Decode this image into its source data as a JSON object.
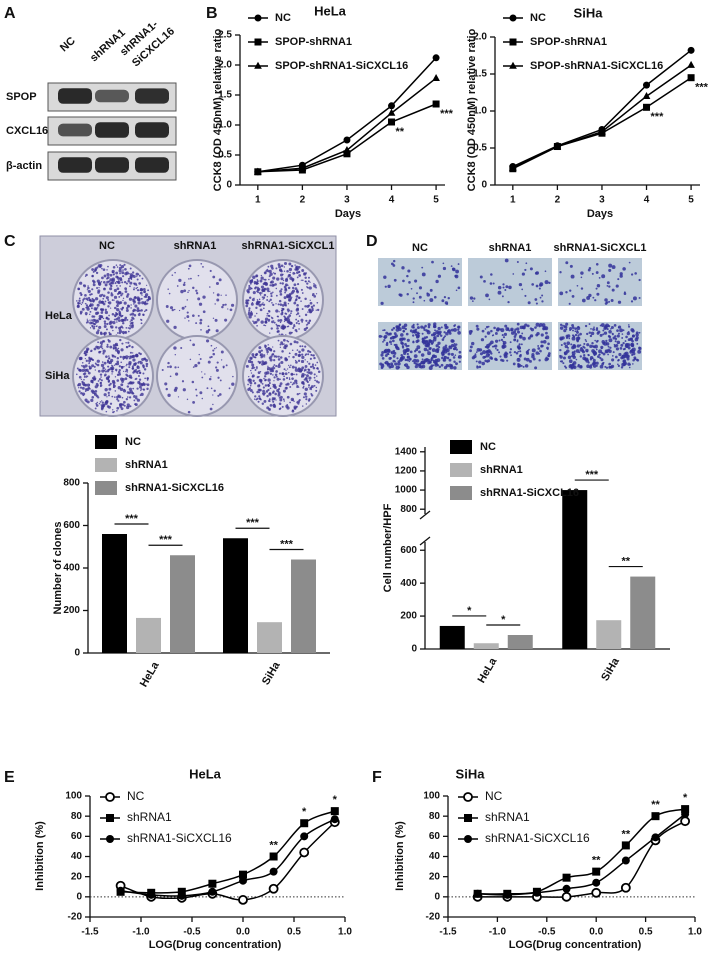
{
  "panel_labels": [
    "A",
    "B",
    "C",
    "D",
    "E",
    "F"
  ],
  "blot": {
    "lanes": [
      [
        "NC"
      ],
      [
        "shRNA1"
      ],
      [
        "shRNA1-",
        "SiCXCL16"
      ]
    ],
    "rows": [
      "SPOP",
      "CXCL16",
      "β-actin"
    ]
  },
  "colony_image": {
    "columns": [
      "NC",
      "shRNA1",
      "shRNA1-SiCXCL1"
    ],
    "rows": [
      "HeLa",
      "SiHa"
    ]
  },
  "transwell_image": {
    "columns": [
      "NC",
      "shRNA1",
      "shRNA1-SiCXCL1"
    ]
  },
  "chart_data": [
    {
      "type": "line",
      "title": "HeLa",
      "x_label": "Days",
      "y_label": "CCK8 (OD 450nM) relative ratio",
      "x": [
        1,
        2,
        3,
        4,
        5
      ],
      "xlim": [
        0.6,
        5.2
      ],
      "xticks": [
        1,
        2,
        3,
        4,
        5
      ],
      "ylim": [
        0,
        2.5
      ],
      "yticks": [
        0,
        0.5,
        {
          "value": 1,
          "label": "1.0"
        },
        1.5,
        {
          "value": 2,
          "label": "2.0"
        },
        2.5
      ],
      "legend": "upper left",
      "series": [
        {
          "name": "NC",
          "color": "#000000",
          "marker": "circle",
          "values": [
            0.22,
            0.33,
            0.75,
            1.32,
            2.12
          ]
        },
        {
          "name": "SPOP-shRNA1",
          "color": "#000000",
          "marker": "square",
          "values": [
            0.22,
            0.25,
            0.52,
            1.05,
            1.35
          ]
        },
        {
          "name": "SPOP-shRNA1-SiCXCL16",
          "color": "#000000",
          "marker": "triangle",
          "values": [
            0.22,
            0.28,
            0.58,
            1.2,
            1.78
          ]
        }
      ],
      "annotations": [
        {
          "x": 4,
          "text": "**"
        },
        {
          "x": 5,
          "text": "***"
        }
      ]
    },
    {
      "type": "line",
      "title": "SiHa",
      "x_label": "Days",
      "y_label": "CCK8 (OD 450nM) relative ratio",
      "x": [
        1,
        2,
        3,
        4,
        5
      ],
      "xlim": [
        0.6,
        5.2
      ],
      "xticks": [
        1,
        2,
        3,
        4,
        5
      ],
      "ylim": [
        0,
        2
      ],
      "yticks": [
        0,
        0.5,
        {
          "value": 1,
          "label": "1.0"
        },
        1.5,
        {
          "value": 2,
          "label": "2.0"
        }
      ],
      "legend": "upper left",
      "series": [
        {
          "name": "NC",
          "color": "#000000",
          "marker": "circle",
          "values": [
            0.25,
            0.53,
            0.75,
            1.35,
            1.82
          ]
        },
        {
          "name": "SPOP-shRNA1",
          "color": "#000000",
          "marker": "square",
          "values": [
            0.22,
            0.52,
            0.7,
            1.05,
            1.45
          ]
        },
        {
          "name": "SPOP-shRNA1-SiCXCL16",
          "color": "#000000",
          "marker": "triangle",
          "values": [
            0.23,
            0.52,
            0.72,
            1.2,
            1.62
          ]
        }
      ],
      "annotations": [
        {
          "x": 4,
          "text": "***"
        },
        {
          "x": 5,
          "text": "***"
        }
      ]
    },
    {
      "type": "bar",
      "y_label": "Number of clones",
      "categories": [
        "HeLa",
        "SiHa"
      ],
      "ylim": [
        0,
        800
      ],
      "yticks": [
        0,
        200,
        400,
        600,
        800
      ],
      "legend": "top",
      "series": [
        {
          "name": "NC",
          "color": "#000000",
          "values": [
            560,
            540
          ]
        },
        {
          "name": "shRNA1",
          "color": "#b3b3b3",
          "values": [
            165,
            145
          ]
        },
        {
          "name": "shRNA1-SiCXCL16",
          "color": "#8c8c8c",
          "values": [
            460,
            440
          ]
        }
      ],
      "significance": [
        {
          "category": 0,
          "series": [
            0,
            1
          ],
          "text": "***"
        },
        {
          "category": 0,
          "series": [
            1,
            2
          ],
          "text": "***"
        },
        {
          "category": 1,
          "series": [
            0,
            1
          ],
          "text": "***"
        },
        {
          "category": 1,
          "series": [
            1,
            2
          ],
          "text": "***"
        }
      ]
    },
    {
      "type": "bar",
      "y_label": "Cell number/HPF",
      "categories": [
        "HeLa",
        "SiHa"
      ],
      "ylim": [
        0,
        1450
      ],
      "axis_break": [
        650,
        750
      ],
      "yticks": [
        0,
        200,
        400,
        600,
        800,
        1000,
        1200,
        1400
      ],
      "legend": "top",
      "series": [
        {
          "name": "NC",
          "color": "#000000",
          "values": [
            140,
            1000
          ]
        },
        {
          "name": "shRNA1",
          "color": "#b3b3b3",
          "values": [
            35,
            175
          ]
        },
        {
          "name": "shRNA1-SiCXCL16",
          "color": "#8c8c8c",
          "values": [
            85,
            440
          ]
        }
      ],
      "significance": [
        {
          "category": 0,
          "series": [
            0,
            1
          ],
          "text": "*"
        },
        {
          "category": 0,
          "series": [
            1,
            2
          ],
          "text": "*"
        },
        {
          "category": 1,
          "series": [
            0,
            1
          ],
          "text": "***"
        },
        {
          "category": 1,
          "series": [
            1,
            2
          ],
          "text": "**"
        }
      ]
    },
    {
      "type": "line",
      "curve": "smooth",
      "title": "HeLa",
      "x_label": "LOG(Drug concentration)",
      "y_label": "Inhibition (%)",
      "x": [
        -1.2,
        -0.9,
        -0.6,
        -0.3,
        0,
        0.3,
        0.6,
        0.9
      ],
      "xlim": [
        -1.5,
        1
      ],
      "xticks": [
        -1.5,
        {
          "value": -1,
          "label": "-1.0"
        },
        -0.5,
        {
          "value": 0,
          "label": "0.0"
        },
        0.5,
        {
          "value": 1,
          "label": "1.0"
        }
      ],
      "ylim": [
        -20,
        100
      ],
      "yticks": [
        -20,
        0,
        20,
        40,
        60,
        80,
        100
      ],
      "reference_line": 0,
      "legend": "upper left",
      "series": [
        {
          "name": "NC",
          "color": "#000000",
          "marker": "open-circle",
          "values": [
            11,
            0,
            -1,
            3,
            -3,
            8,
            44,
            74
          ]
        },
        {
          "name": "shRNA1",
          "color": "#000000",
          "marker": "square",
          "values": [
            5,
            4,
            5,
            13,
            22,
            40,
            73,
            85
          ]
        },
        {
          "name": "shRNA1-SiCXCL16",
          "color": "#000000",
          "marker": "circle",
          "values": [
            6,
            2,
            1,
            5,
            16,
            25,
            60,
            77
          ]
        }
      ],
      "annotations": [
        {
          "x": 0.3,
          "text": "**"
        },
        {
          "x": 0.6,
          "text": "*"
        },
        {
          "x": 0.9,
          "text": "*"
        }
      ]
    },
    {
      "type": "line",
      "curve": "smooth",
      "title": "SiHa",
      "x_label": "LOG(Drug concentration)",
      "y_label": "Inhibition (%)",
      "x": [
        -1.2,
        -0.9,
        -0.6,
        -0.3,
        0,
        0.3,
        0.6,
        0.9
      ],
      "xlim": [
        -1.5,
        1
      ],
      "xticks": [
        -1.5,
        {
          "value": -1,
          "label": "-1.0"
        },
        -0.5,
        {
          "value": 0,
          "label": "0.0"
        },
        0.5,
        {
          "value": 1,
          "label": "1.0"
        }
      ],
      "ylim": [
        -20,
        100
      ],
      "yticks": [
        -20,
        0,
        20,
        40,
        60,
        80,
        100
      ],
      "reference_line": 0,
      "legend": "upper left",
      "series": [
        {
          "name": "NC",
          "color": "#000000",
          "marker": "open-circle",
          "values": [
            0,
            0,
            0,
            0,
            4,
            9,
            56,
            75
          ]
        },
        {
          "name": "shRNA1",
          "color": "#000000",
          "marker": "square",
          "values": [
            3,
            3,
            5,
            19,
            25,
            51,
            80,
            87
          ]
        },
        {
          "name": "shRNA1-SiCXCL16",
          "color": "#000000",
          "marker": "circle",
          "values": [
            3,
            2,
            4,
            8,
            14,
            36,
            59,
            82
          ]
        }
      ],
      "annotations": [
        {
          "x": 0,
          "text": "**"
        },
        {
          "x": 0.3,
          "text": "**"
        },
        {
          "x": 0.6,
          "text": "**"
        },
        {
          "x": 0.9,
          "text": "*"
        }
      ]
    }
  ]
}
